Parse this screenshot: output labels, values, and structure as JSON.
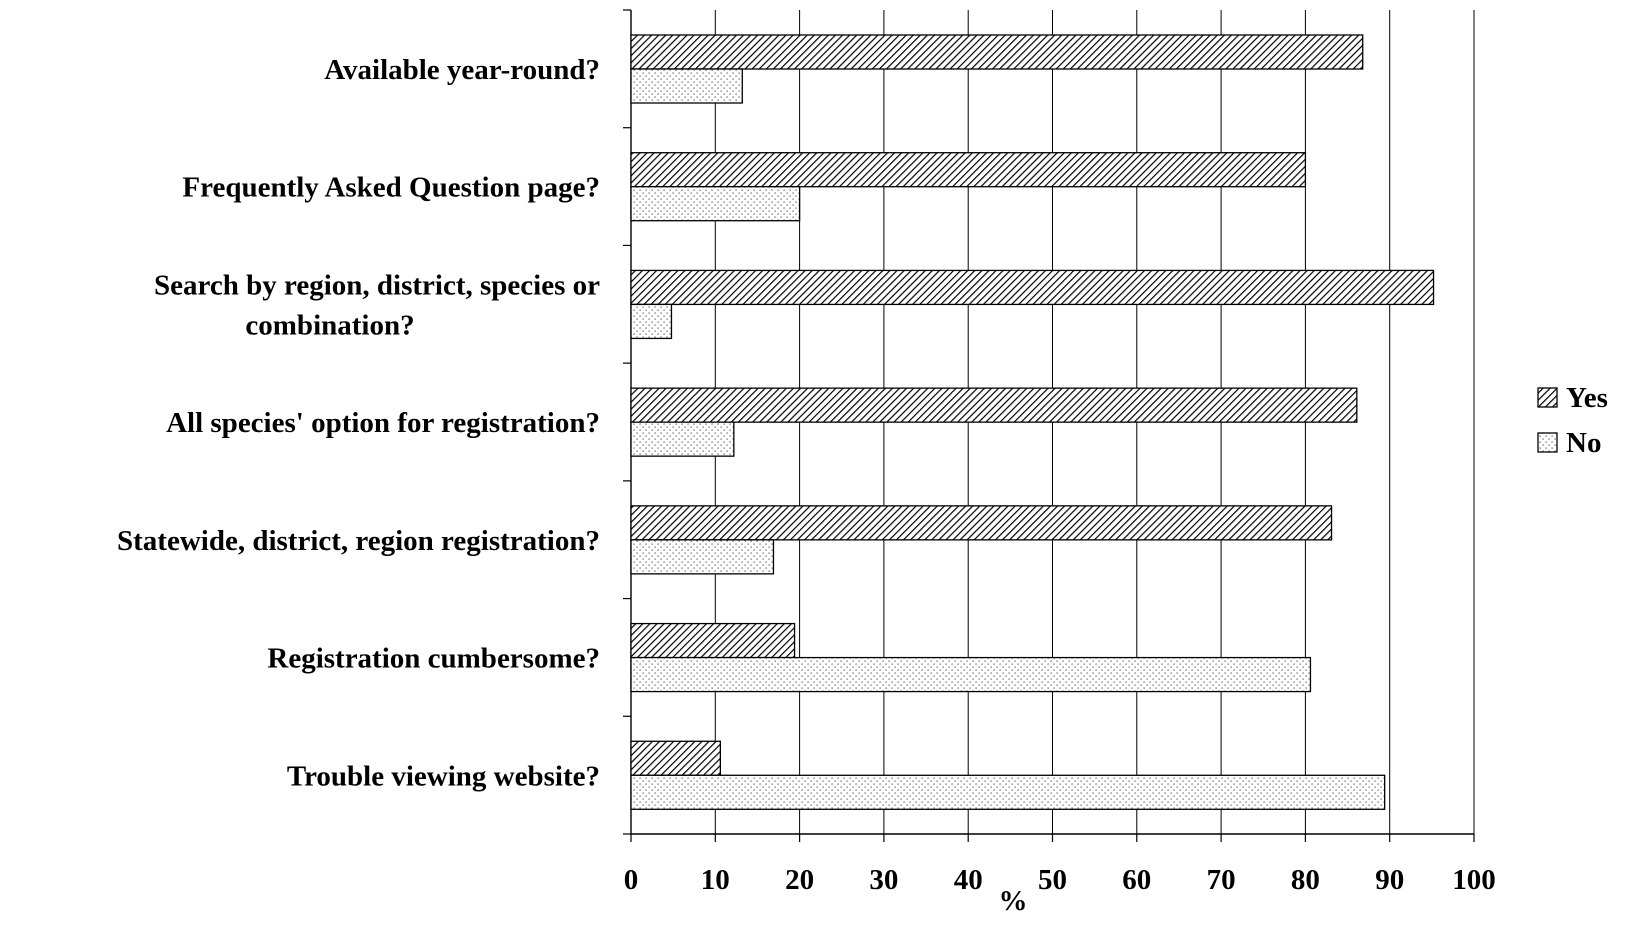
{
  "chart_data": {
    "type": "bar",
    "orientation": "horizontal",
    "categories": [
      "Available year-round?",
      "Frequently Asked Question page?",
      "Search by region, district, species or combination?",
      "All species' option for registration?",
      "Statewide, district, region registration?",
      "Registration cumbersome?",
      "Trouble viewing website?"
    ],
    "category_lines": [
      [
        "Available year-round?"
      ],
      [
        "Frequently Asked Question page?"
      ],
      [
        "Search by region, district, species or",
        "combination?"
      ],
      [
        "All species' option for registration?"
      ],
      [
        "Statewide, district, region registration?"
      ],
      [
        "Registration cumbersome?"
      ],
      [
        "Trouble viewing website?"
      ]
    ],
    "series": [
      {
        "name": "Yes",
        "values": [
          86.8,
          80.0,
          95.2,
          86.1,
          83.1,
          19.4,
          10.6
        ]
      },
      {
        "name": "No",
        "values": [
          13.2,
          20.0,
          4.8,
          12.2,
          16.9,
          80.6,
          89.4
        ]
      }
    ],
    "xlabel": "%",
    "ylabel": "",
    "xlim": [
      0,
      100
    ],
    "xticks": [
      "0",
      "10",
      "20",
      "30",
      "40",
      "50",
      "60",
      "70",
      "80",
      "90",
      "100"
    ],
    "grid": "vertical",
    "legend": "right",
    "colors": {
      "line": "#000000",
      "background": "#ffffff",
      "gridline": "#000000"
    },
    "patterns": {
      "Yes": "diagonal-hatch",
      "No": "dotted"
    }
  }
}
